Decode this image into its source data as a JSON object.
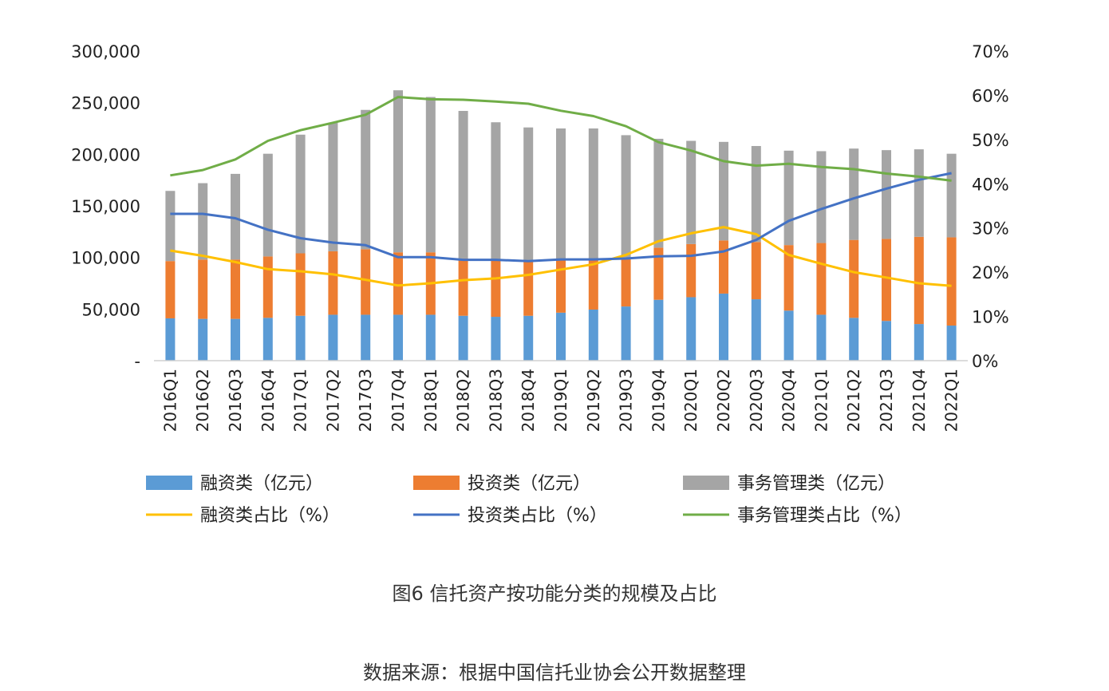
{
  "chart_data": {
    "type": "bar",
    "stacked": true,
    "categories": [
      "2016Q1",
      "2016Q2",
      "2016Q3",
      "2016Q4",
      "2017Q1",
      "2017Q2",
      "2017Q3",
      "2017Q4",
      "2018Q1",
      "2018Q2",
      "2018Q3",
      "2018Q4",
      "2019Q1",
      "2019Q2",
      "2019Q3",
      "2019Q4",
      "2020Q1",
      "2020Q2",
      "2020Q3",
      "2020Q4",
      "2021Q1",
      "2021Q2",
      "2021Q3",
      "2021Q4",
      "2022Q1"
    ],
    "series": [
      {
        "name": "融资类（亿元）",
        "kind": "bar",
        "axis": "left",
        "color": "#5B9BD5",
        "values": [
          41000,
          40500,
          40500,
          41500,
          43500,
          44500,
          44500,
          44500,
          44500,
          43500,
          42500,
          43500,
          46500,
          49500,
          52500,
          59000,
          61500,
          65000,
          59500,
          48500,
          44500,
          41500,
          38500,
          35500,
          34000
        ]
      },
      {
        "name": "投资类（亿元）",
        "kind": "bar",
        "axis": "left",
        "color": "#ED7D31",
        "values": [
          55500,
          57500,
          57500,
          59500,
          60500,
          61500,
          63500,
          60500,
          60500,
          55500,
          54500,
          53500,
          51500,
          48500,
          47500,
          50500,
          51500,
          51500,
          55500,
          63500,
          69500,
          75500,
          79500,
          84500,
          85500
        ]
      },
      {
        "name": "事务管理类（亿元）",
        "kind": "bar",
        "axis": "left",
        "color": "#A5A5A5",
        "values": [
          68000,
          74000,
          83000,
          99500,
          115000,
          124500,
          135000,
          157000,
          150500,
          143000,
          134000,
          129000,
          127000,
          127000,
          118500,
          105500,
          100000,
          95500,
          93000,
          91500,
          89000,
          88500,
          86000,
          84800,
          81000
        ]
      },
      {
        "name": "融资类占比（%）",
        "kind": "line",
        "axis": "right",
        "color": "#FFC000",
        "values": [
          24.9,
          23.7,
          22.3,
          20.7,
          20.2,
          19.5,
          18.3,
          17.0,
          17.5,
          18.2,
          18.6,
          19.4,
          20.6,
          21.8,
          23.9,
          27.0,
          28.8,
          30.2,
          28.6,
          23.9,
          21.9,
          20.0,
          18.8,
          17.5,
          16.9
        ]
      },
      {
        "name": "投资类占比（%）",
        "kind": "line",
        "axis": "right",
        "color": "#4472C4",
        "values": [
          33.2,
          33.2,
          32.2,
          29.6,
          27.7,
          26.7,
          26.1,
          23.4,
          23.4,
          22.8,
          22.8,
          22.5,
          22.9,
          22.9,
          23.1,
          23.6,
          23.7,
          24.7,
          27.3,
          31.6,
          34.3,
          36.7,
          38.9,
          40.9,
          42.4
        ]
      },
      {
        "name": "事务管理类占比（%）",
        "kind": "line",
        "axis": "right",
        "color": "#70AD47",
        "values": [
          41.9,
          43.1,
          45.5,
          49.7,
          52.1,
          53.8,
          55.6,
          59.6,
          59.1,
          59.0,
          58.6,
          58.1,
          56.5,
          55.3,
          53.0,
          49.4,
          47.5,
          45.1,
          44.1,
          44.5,
          43.8,
          43.3,
          42.3,
          41.6,
          40.7
        ]
      }
    ],
    "left_axis": {
      "ylim": [
        0,
        300000
      ],
      "tick_labels": [
        "-",
        "50,000",
        "100,000",
        "150,000",
        "200,000",
        "250,000",
        "300,000"
      ]
    },
    "right_axis": {
      "ylim": [
        0,
        70
      ],
      "tick_labels": [
        "0%",
        "10%",
        "20%",
        "30%",
        "40%",
        "50%",
        "60%",
        "70%"
      ]
    },
    "grid": false,
    "legend_position": "bottom",
    "title": "图6 信托资产按功能分类的规模及占比",
    "source": "数据来源：根据中国信托业协会公开数据整理"
  }
}
